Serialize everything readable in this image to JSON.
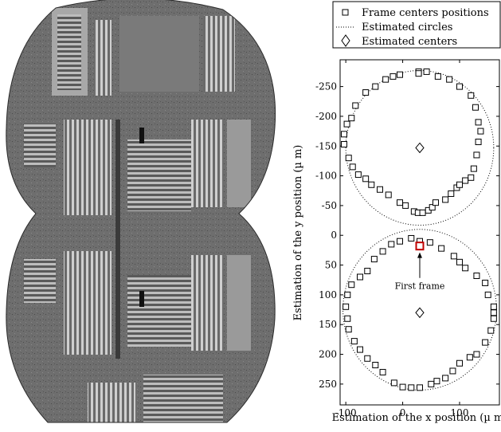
{
  "figure": {
    "left_panel": {
      "description_icon": "grayscale-microscopy-mosaic"
    }
  },
  "chart_data": {
    "type": "scatter",
    "xlabel": "Estimation of the x position (µ m)",
    "ylabel": "Estimation of the y position (µ m)",
    "xlim": [
      -110,
      170
    ],
    "ylim": [
      -295,
      285
    ],
    "y_inverted": true,
    "xticks": [
      -100,
      0,
      100
    ],
    "yticks": [
      -250,
      -200,
      -150,
      -100,
      -50,
      0,
      50,
      100,
      150,
      200,
      250
    ],
    "grid": false,
    "legend": {
      "position": "top",
      "entries": [
        {
          "label": "Frame centers positions",
          "marker": "square"
        },
        {
          "label": "Estimated circles",
          "marker": "dotted-line"
        },
        {
          "label": "Estimated centers",
          "marker": "diamond"
        }
      ]
    },
    "circles": [
      {
        "cx": 30,
        "cy": -147,
        "r": 130
      },
      {
        "cx": 30,
        "cy": 125,
        "r": 135
      }
    ],
    "centers": [
      {
        "x": 30,
        "y": -147
      },
      {
        "x": 30,
        "y": 130
      }
    ],
    "frame_centers": [
      [
        28,
        -275
      ],
      [
        -5,
        -270
      ],
      [
        -17,
        -267
      ],
      [
        -30,
        -262
      ],
      [
        -48,
        -250
      ],
      [
        -65,
        -240
      ],
      [
        -83,
        -218
      ],
      [
        -90,
        -197
      ],
      [
        -98,
        -187
      ],
      [
        -103,
        -170
      ],
      [
        -103,
        -153
      ],
      [
        -95,
        -130
      ],
      [
        -88,
        -115
      ],
      [
        -78,
        -102
      ],
      [
        -65,
        -95
      ],
      [
        -55,
        -85
      ],
      [
        -40,
        -77
      ],
      [
        -25,
        -68
      ],
      [
        -5,
        -55
      ],
      [
        5,
        -50
      ],
      [
        20,
        -40
      ],
      [
        27,
        -38
      ],
      [
        35,
        -38
      ],
      [
        45,
        -42
      ],
      [
        52,
        -47
      ],
      [
        58,
        -55
      ],
      [
        75,
        -60
      ],
      [
        85,
        -70
      ],
      [
        95,
        -80
      ],
      [
        100,
        -85
      ],
      [
        110,
        -92
      ],
      [
        120,
        -97
      ],
      [
        125,
        -112
      ],
      [
        130,
        -135
      ],
      [
        133,
        -157
      ],
      [
        137,
        -175
      ],
      [
        133,
        -190
      ],
      [
        128,
        -215
      ],
      [
        120,
        -235
      ],
      [
        100,
        -250
      ],
      [
        82,
        -262
      ],
      [
        62,
        -267
      ],
      [
        42,
        -275
      ],
      [
        28,
        -272
      ],
      [
        30,
        10
      ],
      [
        48,
        12
      ],
      [
        68,
        22
      ],
      [
        90,
        35
      ],
      [
        100,
        45
      ],
      [
        110,
        55
      ],
      [
        130,
        68
      ],
      [
        145,
        80
      ],
      [
        150,
        100
      ],
      [
        160,
        120
      ],
      [
        160,
        130
      ],
      [
        160,
        140
      ],
      [
        155,
        160
      ],
      [
        145,
        180
      ],
      [
        130,
        200
      ],
      [
        118,
        205
      ],
      [
        100,
        215
      ],
      [
        88,
        228
      ],
      [
        75,
        240
      ],
      [
        60,
        245
      ],
      [
        50,
        250
      ],
      [
        30,
        256
      ],
      [
        15,
        256
      ],
      [
        0,
        255
      ],
      [
        -15,
        248
      ],
      [
        -35,
        230
      ],
      [
        -48,
        218
      ],
      [
        -62,
        207
      ],
      [
        -75,
        192
      ],
      [
        -85,
        178
      ],
      [
        -95,
        158
      ],
      [
        -97,
        140
      ],
      [
        -100,
        120
      ],
      [
        -97,
        100
      ],
      [
        -90,
        83
      ],
      [
        -75,
        70
      ],
      [
        -62,
        60
      ],
      [
        -50,
        40
      ],
      [
        -35,
        27
      ],
      [
        -20,
        15
      ],
      [
        -5,
        10
      ],
      [
        15,
        5
      ]
    ],
    "first_frame": {
      "x": 30,
      "y": 18
    },
    "annotations": [
      {
        "text": "First frame",
        "x": 30,
        "y": 85
      }
    ]
  }
}
